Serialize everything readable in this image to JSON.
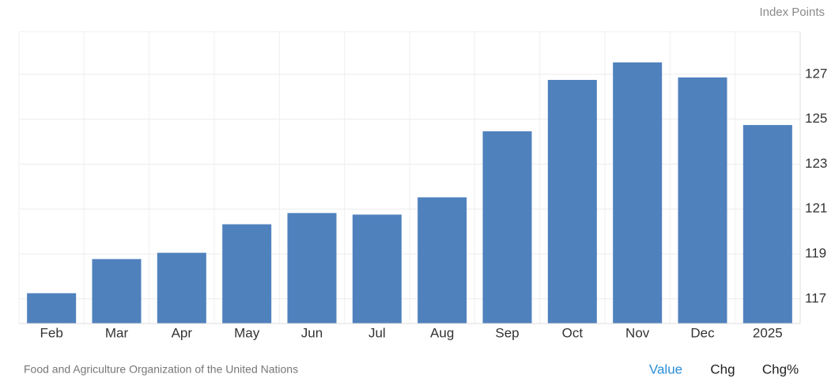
{
  "chart_data": {
    "type": "bar",
    "y_label": "Index Points",
    "categories": [
      "Feb",
      "Mar",
      "Apr",
      "May",
      "Jun",
      "Jul",
      "Aug",
      "Sep",
      "Oct",
      "Nov",
      "Dec",
      "2025"
    ],
    "values": [
      117.25,
      118.77,
      119.05,
      120.32,
      120.82,
      120.75,
      121.52,
      124.46,
      126.75,
      127.53,
      126.86,
      124.74
    ],
    "color": "#4f81bd",
    "ylim": [
      115.9,
      128.9
    ],
    "yticks": [
      117,
      119,
      121,
      123,
      125,
      127
    ],
    "grid": true,
    "source": "Food and Agriculture Organization of the United Nations",
    "tabs": [
      "Value",
      "Chg",
      "Chg%"
    ]
  }
}
